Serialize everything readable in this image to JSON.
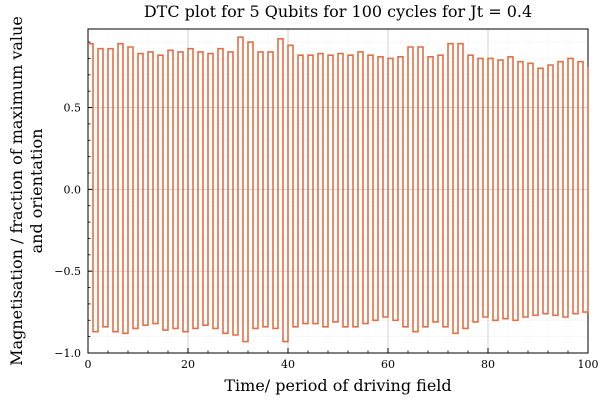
{
  "chart_data": {
    "type": "line",
    "title": "DTC plot for 5 Qubits for 100 cycles for Jt = 0.4",
    "xlabel": "Time/ period of driving field",
    "ylabel_line1": "Magnetisation / fraction of maximum value",
    "ylabel_line2": "and orientation",
    "xlim": [
      0,
      100
    ],
    "ylim": [
      -1.0,
      0.98
    ],
    "xticks": [
      0,
      20,
      40,
      60,
      80,
      100
    ],
    "xtick_labels": [
      "0",
      "20",
      "40",
      "60",
      "80",
      "100"
    ],
    "yticks": [
      -1.0,
      -0.5,
      0.0,
      0.5
    ],
    "ytick_labels": [
      "−1.0",
      "−0.5",
      "0.0",
      "0.5"
    ],
    "grid": true,
    "step": true,
    "series": [
      {
        "color": "#e26f46",
        "x": [
          0,
          1,
          2,
          3,
          4,
          5,
          6,
          7,
          8,
          9,
          10,
          11,
          12,
          13,
          14,
          15,
          16,
          17,
          18,
          19,
          20,
          21,
          22,
          23,
          24,
          25,
          26,
          27,
          28,
          29,
          30,
          31,
          32,
          33,
          34,
          35,
          36,
          37,
          38,
          39,
          40,
          41,
          42,
          43,
          44,
          45,
          46,
          47,
          48,
          49,
          50,
          51,
          52,
          53,
          54,
          55,
          56,
          57,
          58,
          59,
          60,
          61,
          62,
          63,
          64,
          65,
          66,
          67,
          68,
          69,
          70,
          71,
          72,
          73,
          74,
          75,
          76,
          77,
          78,
          79,
          80,
          81,
          82,
          83,
          84,
          85,
          86,
          87,
          88,
          89,
          90,
          91,
          92,
          93,
          94,
          95,
          96,
          97,
          98,
          99,
          100
        ],
        "values": [
          0.89,
          -0.87,
          0.86,
          -0.84,
          0.86,
          -0.87,
          0.89,
          -0.88,
          0.87,
          -0.85,
          0.83,
          -0.83,
          0.84,
          -0.82,
          0.82,
          -0.86,
          0.85,
          -0.85,
          0.84,
          -0.87,
          0.86,
          -0.85,
          0.84,
          -0.83,
          0.83,
          -0.85,
          0.86,
          -0.88,
          0.84,
          -0.89,
          0.93,
          -0.93,
          0.9,
          -0.85,
          0.84,
          -0.84,
          0.84,
          -0.85,
          0.92,
          -0.93,
          0.88,
          -0.84,
          0.82,
          -0.82,
          0.82,
          -0.82,
          0.83,
          -0.84,
          0.82,
          -0.81,
          0.83,
          -0.84,
          0.82,
          -0.84,
          0.84,
          -0.82,
          0.82,
          -0.8,
          0.81,
          -0.78,
          0.8,
          -0.8,
          0.81,
          -0.84,
          0.87,
          -0.87,
          0.87,
          -0.84,
          0.81,
          -0.81,
          0.82,
          -0.84,
          0.89,
          -0.88,
          0.89,
          -0.85,
          0.82,
          -0.81,
          0.8,
          -0.78,
          0.8,
          -0.8,
          0.79,
          -0.79,
          0.81,
          -0.8,
          0.78,
          -0.78,
          0.77,
          -0.77,
          0.74,
          -0.76,
          0.76,
          -0.77,
          0.78,
          -0.78,
          0.8,
          -0.76,
          0.78,
          -0.75,
          0.75
        ]
      }
    ]
  }
}
